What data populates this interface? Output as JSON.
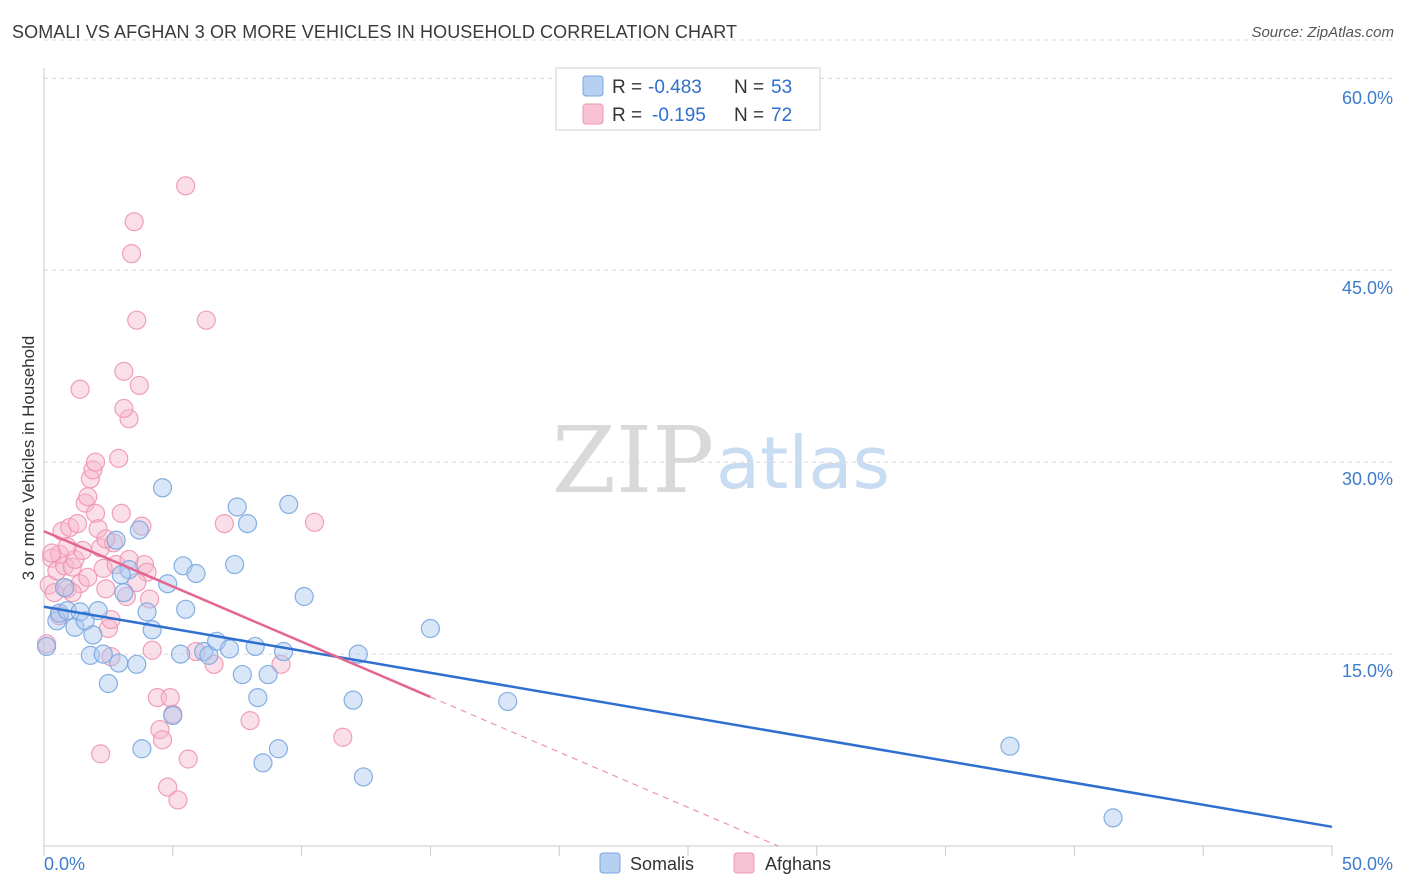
{
  "header": {
    "title": "SOMALI VS AFGHAN 3 OR MORE VEHICLES IN HOUSEHOLD CORRELATION CHART",
    "source": "Source: ZipAtlas.com"
  },
  "colors": {
    "somali_fill": "#a9c8ef",
    "somali_stroke": "#7aa6df",
    "somali_line": "#2f6fcf",
    "afghan_fill": "#f6b8cc",
    "afghan_stroke": "#ee95b2",
    "afghan_line": "#e2668f",
    "axis_label": "#3e7cc9",
    "grid": "#dcdcdc"
  },
  "legend": {
    "somali": {
      "r_label": "R = ",
      "r_value": "-0.483",
      "n_label": "N = ",
      "n_value": "53"
    },
    "afghan": {
      "r_label": "R = ",
      "r_value": "-0.195",
      "n_label": "N = ",
      "n_value": "72"
    }
  },
  "watermark": {
    "zip": "ZIP",
    "atlas": "atlas"
  },
  "chart_data": {
    "type": "scatter",
    "title": "SOMALI VS AFGHAN 3 OR MORE VEHICLES IN HOUSEHOLD CORRELATION CHART",
    "xlabel": "",
    "ylabel": "3 or more Vehicles in Household",
    "xlim": [
      0,
      50
    ],
    "ylim": [
      0,
      63
    ],
    "x_tick_labels": [
      "0.0%",
      "50.0%"
    ],
    "y_ticks": [
      15,
      30,
      45,
      60
    ],
    "y_tick_labels": [
      "15.0%",
      "30.0%",
      "45.0%",
      "60.0%"
    ],
    "grid": true,
    "legend_position": "top-center",
    "series": [
      {
        "name": "Somalis",
        "r": -0.483,
        "n": 53,
        "trend": {
          "x": [
            0,
            50
          ],
          "y": [
            18.7,
            1.5
          ],
          "solid_to": 50
        },
        "points": [
          [
            0.1,
            15.6
          ],
          [
            0.5,
            17.6
          ],
          [
            0.6,
            18.2
          ],
          [
            0.8,
            20.2
          ],
          [
            0.9,
            18.4
          ],
          [
            1.2,
            17.1
          ],
          [
            1.4,
            18.3
          ],
          [
            1.6,
            17.6
          ],
          [
            1.8,
            14.9
          ],
          [
            1.9,
            16.5
          ],
          [
            2.1,
            18.4
          ],
          [
            2.3,
            15.0
          ],
          [
            2.5,
            12.7
          ],
          [
            2.8,
            23.9
          ],
          [
            2.9,
            14.3
          ],
          [
            3.1,
            19.8
          ],
          [
            3.3,
            21.6
          ],
          [
            3.6,
            14.2
          ],
          [
            3.7,
            24.7
          ],
          [
            3.8,
            7.6
          ],
          [
            4.0,
            18.3
          ],
          [
            4.2,
            16.9
          ],
          [
            4.6,
            28.0
          ],
          [
            4.8,
            20.5
          ],
          [
            5.0,
            10.2
          ],
          [
            5.3,
            15.0
          ],
          [
            5.4,
            21.9
          ],
          [
            5.5,
            18.5
          ],
          [
            5.9,
            21.3
          ],
          [
            6.2,
            15.2
          ],
          [
            6.4,
            14.9
          ],
          [
            6.7,
            16.0
          ],
          [
            7.2,
            15.4
          ],
          [
            7.4,
            22.0
          ],
          [
            7.5,
            26.5
          ],
          [
            7.7,
            13.4
          ],
          [
            7.9,
            25.2
          ],
          [
            8.2,
            15.6
          ],
          [
            8.3,
            11.6
          ],
          [
            8.5,
            6.5
          ],
          [
            8.7,
            13.4
          ],
          [
            9.1,
            7.6
          ],
          [
            9.3,
            15.2
          ],
          [
            9.5,
            26.7
          ],
          [
            10.1,
            19.5
          ],
          [
            12.0,
            11.4
          ],
          [
            12.2,
            15.0
          ],
          [
            12.4,
            5.4
          ],
          [
            15.0,
            17.0
          ],
          [
            18.0,
            11.3
          ],
          [
            37.5,
            7.8
          ],
          [
            41.5,
            2.2
          ],
          [
            3.0,
            21.2
          ]
        ]
      },
      {
        "name": "Afghans",
        "r": -0.195,
        "n": 72,
        "trend": {
          "x": [
            0,
            28.5
          ],
          "y": [
            24.6,
            0.0
          ],
          "solid_to": 15.0
        },
        "points": [
          [
            0.1,
            15.8
          ],
          [
            0.2,
            20.4
          ],
          [
            0.3,
            22.5
          ],
          [
            0.4,
            19.8
          ],
          [
            0.5,
            21.5
          ],
          [
            0.6,
            22.8
          ],
          [
            0.7,
            24.6
          ],
          [
            0.8,
            21.9
          ],
          [
            0.9,
            20.1
          ],
          [
            1.0,
            24.9
          ],
          [
            1.1,
            21.8
          ],
          [
            1.2,
            22.4
          ],
          [
            1.3,
            25.2
          ],
          [
            1.4,
            20.5
          ],
          [
            1.5,
            23.1
          ],
          [
            1.6,
            26.8
          ],
          [
            1.7,
            27.3
          ],
          [
            1.8,
            28.7
          ],
          [
            1.9,
            29.4
          ],
          [
            2.0,
            26.0
          ],
          [
            2.1,
            24.8
          ],
          [
            2.2,
            23.3
          ],
          [
            2.3,
            21.7
          ],
          [
            2.4,
            20.1
          ],
          [
            2.5,
            17.0
          ],
          [
            2.6,
            17.7
          ],
          [
            2.7,
            23.7
          ],
          [
            2.8,
            22.0
          ],
          [
            2.9,
            30.3
          ],
          [
            3.0,
            26.0
          ],
          [
            3.1,
            37.1
          ],
          [
            3.2,
            19.5
          ],
          [
            3.3,
            33.4
          ],
          [
            3.4,
            46.3
          ],
          [
            3.5,
            48.8
          ],
          [
            3.6,
            41.1
          ],
          [
            3.7,
            36.0
          ],
          [
            3.8,
            25.0
          ],
          [
            3.9,
            22.0
          ],
          [
            4.0,
            21.4
          ],
          [
            4.2,
            15.3
          ],
          [
            4.4,
            11.6
          ],
          [
            4.5,
            9.1
          ],
          [
            4.6,
            8.3
          ],
          [
            4.8,
            4.6
          ],
          [
            5.0,
            10.3
          ],
          [
            5.2,
            3.6
          ],
          [
            5.5,
            51.6
          ],
          [
            5.6,
            6.8
          ],
          [
            5.9,
            15.2
          ],
          [
            6.3,
            41.1
          ],
          [
            6.6,
            14.2
          ],
          [
            7.0,
            25.2
          ],
          [
            2.2,
            7.2
          ],
          [
            3.1,
            34.2
          ],
          [
            1.4,
            35.7
          ],
          [
            0.6,
            18.0
          ],
          [
            1.1,
            19.8
          ],
          [
            2.6,
            14.8
          ],
          [
            3.6,
            20.6
          ],
          [
            0.3,
            22.9
          ],
          [
            0.9,
            23.4
          ],
          [
            1.7,
            21.0
          ],
          [
            2.4,
            24.0
          ],
          [
            3.3,
            22.4
          ],
          [
            4.1,
            19.3
          ],
          [
            8.0,
            9.8
          ],
          [
            9.2,
            14.2
          ],
          [
            10.5,
            25.3
          ],
          [
            11.6,
            8.5
          ],
          [
            4.9,
            11.6
          ],
          [
            2.0,
            30.0
          ]
        ]
      }
    ]
  }
}
